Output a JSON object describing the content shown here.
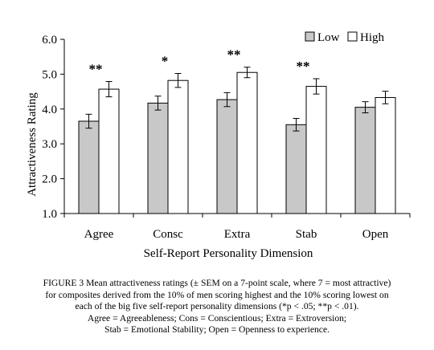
{
  "chart_data": {
    "type": "bar",
    "categories": [
      "Agree",
      "Consc",
      "Extra",
      "Stab",
      "Open"
    ],
    "series": [
      {
        "name": "Low",
        "color": "#c8c8c8",
        "values": [
          3.65,
          4.17,
          4.27,
          3.55,
          4.05
        ],
        "errors": [
          0.2,
          0.2,
          0.2,
          0.18,
          0.16
        ]
      },
      {
        "name": "High",
        "color": "#ffffff",
        "values": [
          4.57,
          4.82,
          5.05,
          4.65,
          4.33
        ],
        "errors": [
          0.22,
          0.2,
          0.15,
          0.22,
          0.18
        ]
      }
    ],
    "significance": [
      "**",
      "*",
      "**",
      "**",
      ""
    ],
    "xlabel": "Self-Report Personality Dimension",
    "ylabel": "Attractiveness Rating",
    "ylim": [
      1.0,
      6.0
    ],
    "yticks": [
      "1.0",
      "2.0",
      "3.0",
      "4.0",
      "5.0",
      "6.0"
    ],
    "grid": false,
    "legend_position": "top-right"
  },
  "caption": {
    "lines": [
      "FIGURE 3 Mean attractiveness ratings (± SEM on a 7-point scale, where 7 = most attractive)",
      "for composites derived from the 10% of men scoring highest and the 10% scoring lowest on",
      "each of the big five self-report personality dimensions (*p < .05; **p < .01).",
      "Agree = Agreeableness; Cons = Conscientious; Extra = Extroversion;",
      "Stab = Emotional Stability; Open = Openness to experience."
    ]
  }
}
